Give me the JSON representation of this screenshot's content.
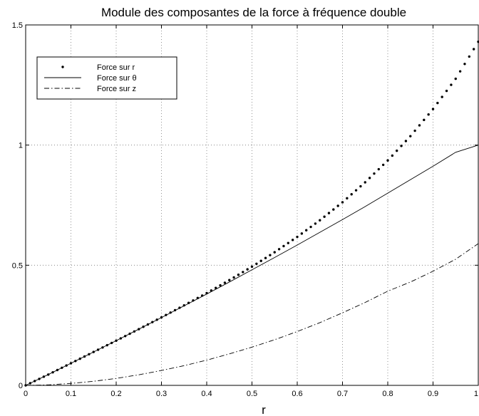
{
  "chart_data": {
    "type": "line",
    "title": "Module des composantes de la force à fréquence double",
    "xlabel": "r",
    "ylabel": "",
    "xlim": [
      0,
      1
    ],
    "ylim": [
      0,
      1.5
    ],
    "xticks": [
      0,
      0.1,
      0.2,
      0.3,
      0.4,
      0.5,
      0.6,
      0.7,
      0.8,
      0.9,
      1
    ],
    "xtick_labels": [
      "0",
      "0.1",
      "0.2",
      "0.3",
      "0.4",
      "0.5",
      "0.6",
      "0.7",
      "0.8",
      "0.9",
      "1"
    ],
    "yticks": [
      0,
      0.5,
      1,
      1.5
    ],
    "ytick_labels": [
      "0",
      "0.5",
      "1",
      "1.5"
    ],
    "grid": true,
    "legend_position": "top-left",
    "x": [
      0,
      0.05,
      0.1,
      0.15,
      0.2,
      0.25,
      0.3,
      0.35,
      0.4,
      0.45,
      0.5,
      0.55,
      0.6,
      0.65,
      0.7,
      0.75,
      0.8,
      0.85,
      0.9,
      0.95,
      1.0
    ],
    "series": [
      {
        "name": "Force sur r",
        "style": "dotted",
        "values": [
          0,
          0.045,
          0.092,
          0.139,
          0.186,
          0.234,
          0.283,
          0.333,
          0.384,
          0.438,
          0.494,
          0.554,
          0.618,
          0.687,
          0.762,
          0.845,
          0.936,
          1.037,
          1.15,
          1.276,
          1.43
        ]
      },
      {
        "name": "Force sur θ",
        "style": "solid",
        "values": [
          0,
          0.045,
          0.092,
          0.139,
          0.186,
          0.234,
          0.282,
          0.331,
          0.38,
          0.43,
          0.481,
          0.532,
          0.584,
          0.637,
          0.69,
          0.744,
          0.8,
          0.856,
          0.912,
          0.97,
          1.0
        ]
      },
      {
        "name": "Force sur z",
        "style": "dashdot",
        "values": [
          0,
          0.002,
          0.008,
          0.017,
          0.029,
          0.044,
          0.062,
          0.082,
          0.105,
          0.131,
          0.159,
          0.19,
          0.224,
          0.261,
          0.302,
          0.345,
          0.392,
          0.43,
          0.475,
          0.525,
          0.59
        ]
      }
    ]
  }
}
